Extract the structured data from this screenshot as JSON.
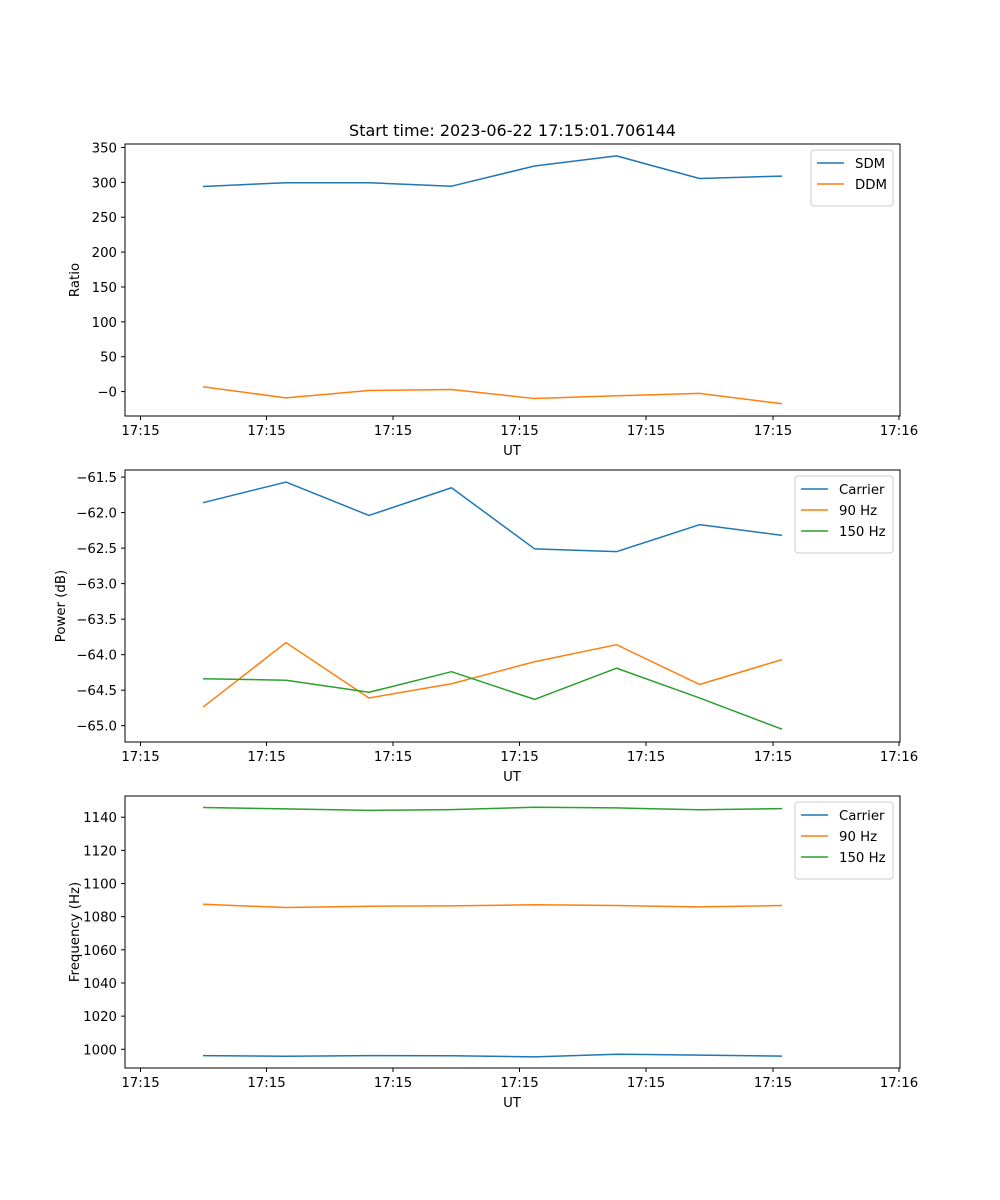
{
  "figure_title": "Start time: 2023-06-22 17:15:01.706144",
  "colors": {
    "blue": "#1f77b4",
    "orange": "#ff7f0e",
    "green": "#2ca02c"
  },
  "chart_data": [
    {
      "type": "line",
      "title": "Start time: 2023-06-22 17:15:01.706144",
      "xlabel": "UT",
      "ylabel": "Ratio",
      "x_ticks": [
        "17:15",
        "17:15",
        "17:15",
        "17:15",
        "17:15",
        "17:15",
        "17:16"
      ],
      "y_ticks": [
        "−0",
        "50",
        "100",
        "150",
        "200",
        "250",
        "300",
        "350"
      ],
      "y_tick_values": [
        0,
        50,
        100,
        150,
        200,
        250,
        300,
        350
      ],
      "ylim": [
        -35,
        355
      ],
      "grid": false,
      "legend_position": "top-right",
      "series": [
        {
          "name": "SDM",
          "color": "#1f77b4",
          "values": [
            294,
            299.5,
            299.5,
            294.5,
            323.5,
            338,
            305.5,
            309
          ]
        },
        {
          "name": "DDM",
          "color": "#ff7f0e",
          "values": [
            7,
            -9,
            1.5,
            3,
            -10,
            -6,
            -2.5,
            -17.5
          ]
        }
      ]
    },
    {
      "type": "line",
      "title": "",
      "xlabel": "UT",
      "ylabel": "Power (dB)",
      "x_ticks": [
        "17:15",
        "17:15",
        "17:15",
        "17:15",
        "17:15",
        "17:15",
        "17:16"
      ],
      "y_ticks": [
        "−65.0",
        "−64.5",
        "−64.0",
        "−63.5",
        "−63.0",
        "−62.5",
        "−62.0",
        "−61.5"
      ],
      "y_tick_values": [
        -65.0,
        -64.5,
        -64.0,
        -63.5,
        -63.0,
        -62.5,
        -62.0,
        -61.5
      ],
      "ylim": [
        -65.23,
        -61.4
      ],
      "grid": false,
      "legend_position": "top-right",
      "series": [
        {
          "name": "Carrier",
          "color": "#1f77b4",
          "values": [
            -61.86,
            -61.57,
            -62.04,
            -61.65,
            -62.51,
            -62.55,
            -62.17,
            -62.32
          ]
        },
        {
          "name": "90 Hz",
          "color": "#ff7f0e",
          "values": [
            -64.74,
            -63.83,
            -64.61,
            -64.41,
            -64.1,
            -63.86,
            -64.42,
            -64.07
          ]
        },
        {
          "name": "150 Hz",
          "color": "#2ca02c",
          "values": [
            -64.34,
            -64.36,
            -64.53,
            -64.24,
            -64.63,
            -64.19,
            -64.61,
            -65.05
          ]
        }
      ]
    },
    {
      "type": "line",
      "title": "",
      "xlabel": "UT",
      "ylabel": "Frequency (Hz)",
      "x_ticks": [
        "17:15",
        "17:15",
        "17:15",
        "17:15",
        "17:15",
        "17:15",
        "17:16"
      ],
      "y_ticks": [
        "1000",
        "1020",
        "1040",
        "1060",
        "1080",
        "1100",
        "1120",
        "1140"
      ],
      "y_tick_values": [
        1000,
        1020,
        1040,
        1060,
        1080,
        1100,
        1120,
        1140
      ],
      "ylim": [
        988.7,
        1152.8
      ],
      "grid": false,
      "legend_position": "top-right",
      "series": [
        {
          "name": "Carrier",
          "color": "#1f77b4",
          "values": [
            996.2,
            995.8,
            996.2,
            996.1,
            995.4,
            997.0,
            996.5,
            995.9
          ]
        },
        {
          "name": "90 Hz",
          "color": "#ff7f0e",
          "values": [
            1087.5,
            1085.5,
            1086.3,
            1086.5,
            1087.2,
            1086.7,
            1085.9,
            1086.7
          ]
        },
        {
          "name": "150 Hz",
          "color": "#2ca02c",
          "values": [
            1145.9,
            1145.0,
            1144.1,
            1144.6,
            1146.0,
            1145.6,
            1144.5,
            1145.2
          ]
        }
      ]
    }
  ]
}
